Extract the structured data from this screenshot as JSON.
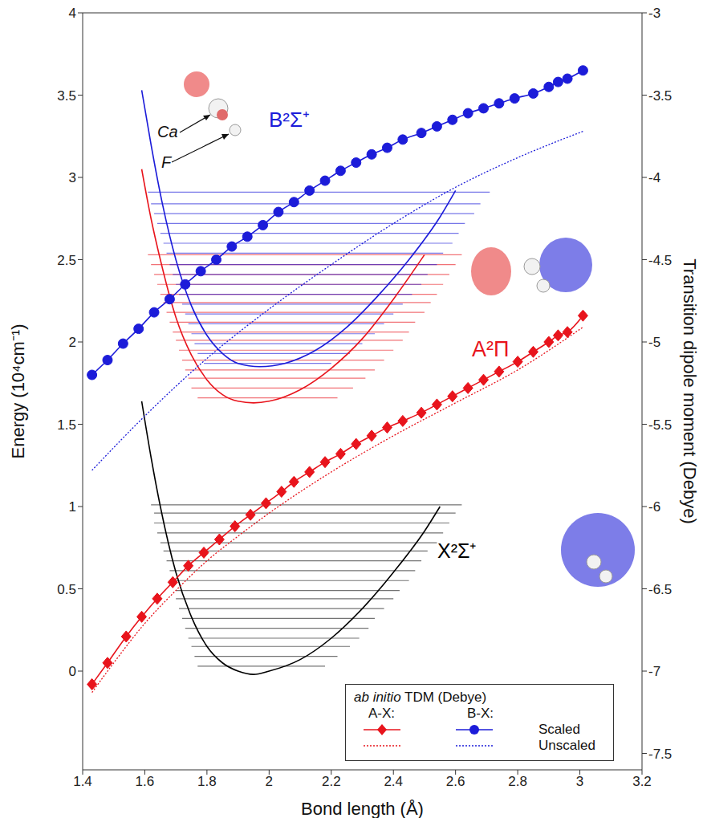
{
  "chart_data": {
    "type": "line",
    "x_label": "Bond length (Å)",
    "y_label": "Energy (10⁴cm⁻¹)",
    "y2_label": "Transition dipole moment (Debye)",
    "xlim": [
      1.4,
      3.2
    ],
    "xticks": [
      1.4,
      1.6,
      1.8,
      2,
      2.2,
      2.4,
      2.6,
      2.8,
      3,
      3.2
    ],
    "ylim": [
      -0.6,
      4
    ],
    "yticks": [
      0,
      0.5,
      1,
      1.5,
      2,
      2.5,
      3,
      3.5,
      4
    ],
    "y2lim": [
      -7.6,
      -3
    ],
    "y2ticks": [
      -7.5,
      -7,
      -6.5,
      -6,
      -5.5,
      -5,
      -4.5,
      -4,
      -3.5,
      -3
    ],
    "legend": "lower right",
    "legend_title": [
      "ab initio",
      "TDM (Debye)"
    ],
    "annotations": [
      "Ca",
      "F"
    ],
    "series": [
      {
        "name": "X²Σ⁺",
        "color": "#000000",
        "marker": "none",
        "line_style": "solid",
        "x": [
          1.59,
          1.62,
          1.65,
          1.7,
          1.75,
          1.8,
          1.85,
          1.9,
          1.95,
          2.0,
          2.1,
          2.2,
          2.3,
          2.4,
          2.5,
          2.55
        ],
        "values": [
          1.64,
          1.3,
          1.0,
          0.6,
          0.33,
          0.15,
          0.05,
          0.0,
          -0.02,
          0.0,
          0.07,
          0.2,
          0.38,
          0.6,
          0.85,
          1.0
        ],
        "vibrational_levels": {
          "energies": [
            0.03,
            0.09,
            0.15,
            0.2,
            0.26,
            0.32,
            0.38,
            0.44,
            0.49,
            0.55,
            0.61,
            0.67,
            0.73,
            0.78,
            0.84,
            0.9,
            0.96,
            1.01
          ],
          "x_start": [
            1.77,
            1.76,
            1.75,
            1.74,
            1.73,
            1.72,
            1.71,
            1.7,
            1.7,
            1.69,
            1.68,
            1.67,
            1.66,
            1.65,
            1.64,
            1.63,
            1.63,
            1.62
          ],
          "x_end": [
            2.18,
            2.22,
            2.26,
            2.29,
            2.32,
            2.34,
            2.37,
            2.4,
            2.42,
            2.45,
            2.47,
            2.49,
            2.51,
            2.54,
            2.56,
            2.58,
            2.6,
            2.62
          ]
        }
      },
      {
        "name": "A²Π",
        "color": "#e8141c",
        "marker": "none",
        "line_style": "solid",
        "x": [
          1.59,
          1.62,
          1.65,
          1.7,
          1.75,
          1.8,
          1.85,
          1.9,
          1.95,
          2.0,
          2.1,
          2.2,
          2.3,
          2.4,
          2.5
        ],
        "values": [
          3.05,
          2.75,
          2.5,
          2.15,
          1.92,
          1.77,
          1.68,
          1.64,
          1.63,
          1.64,
          1.71,
          1.84,
          2.02,
          2.26,
          2.53
        ],
        "vibrational_levels": {
          "energies": [
            1.66,
            1.72,
            1.78,
            1.83,
            1.89,
            1.95,
            2.01,
            2.06,
            2.12,
            2.18,
            2.24,
            2.29,
            2.35,
            2.41,
            2.47,
            2.53
          ],
          "x_start": [
            1.77,
            1.75,
            1.74,
            1.73,
            1.72,
            1.71,
            1.7,
            1.69,
            1.68,
            1.67,
            1.66,
            1.65,
            1.64,
            1.63,
            1.62,
            1.61
          ],
          "x_end": [
            2.22,
            2.27,
            2.31,
            2.34,
            2.37,
            2.4,
            2.43,
            2.45,
            2.47,
            2.5,
            2.52,
            2.54,
            2.56,
            2.58,
            2.6,
            2.62
          ]
        }
      },
      {
        "name": "B²Σ⁺",
        "color": "#1c1cd9",
        "marker": "none",
        "line_style": "solid",
        "x": [
          1.59,
          1.62,
          1.65,
          1.7,
          1.75,
          1.8,
          1.85,
          1.9,
          1.97,
          2.05,
          2.15,
          2.25,
          2.35,
          2.45,
          2.55,
          2.6
        ],
        "values": [
          3.53,
          3.2,
          2.9,
          2.5,
          2.22,
          2.04,
          1.93,
          1.87,
          1.85,
          1.87,
          1.95,
          2.09,
          2.28,
          2.5,
          2.76,
          2.92
        ],
        "vibrational_levels": {
          "energies": [
            1.87,
            1.93,
            1.99,
            2.05,
            2.11,
            2.17,
            2.23,
            2.29,
            2.35,
            2.41,
            2.47,
            2.54,
            2.6,
            2.66,
            2.72,
            2.78,
            2.84,
            2.91
          ],
          "x_start": [
            1.79,
            1.77,
            1.76,
            1.75,
            1.74,
            1.73,
            1.72,
            1.71,
            1.7,
            1.69,
            1.68,
            1.67,
            1.66,
            1.65,
            1.64,
            1.63,
            1.62,
            1.61
          ],
          "x_end": [
            2.2,
            2.26,
            2.3,
            2.34,
            2.37,
            2.4,
            2.43,
            2.46,
            2.49,
            2.51,
            2.54,
            2.56,
            2.59,
            2.61,
            2.63,
            2.66,
            2.68,
            2.71
          ]
        }
      },
      {
        "group": "A-X:",
        "name": "Scaled",
        "axis": "y2",
        "color": "#e8141c",
        "marker": "diamond",
        "line_style": "solid",
        "x": [
          1.43,
          1.48,
          1.54,
          1.59,
          1.64,
          1.69,
          1.74,
          1.79,
          1.84,
          1.89,
          1.94,
          1.99,
          2.04,
          2.08,
          2.13,
          2.18,
          2.23,
          2.28,
          2.33,
          2.38,
          2.43,
          2.49,
          2.54,
          2.59,
          2.64,
          2.69,
          2.74,
          2.8,
          2.85,
          2.9,
          2.93,
          2.96,
          3.01
        ],
        "values": [
          -7.08,
          -6.95,
          -6.79,
          -6.67,
          -6.56,
          -6.46,
          -6.36,
          -6.28,
          -6.2,
          -6.12,
          -6.05,
          -5.98,
          -5.91,
          -5.85,
          -5.79,
          -5.73,
          -5.68,
          -5.62,
          -5.57,
          -5.52,
          -5.48,
          -5.43,
          -5.38,
          -5.33,
          -5.28,
          -5.23,
          -5.18,
          -5.12,
          -5.06,
          -5.0,
          -4.96,
          -4.94,
          -4.84
        ]
      },
      {
        "group": "A-X:",
        "name": "Unscaled",
        "axis": "y2",
        "color": "#e8141c",
        "marker": "none",
        "line_style": "dotted",
        "x": [
          1.43,
          1.5,
          1.6,
          1.7,
          1.8,
          1.9,
          2.0,
          2.2,
          2.4,
          2.6,
          2.8,
          3.01
        ],
        "values": [
          -7.13,
          -6.95,
          -6.71,
          -6.51,
          -6.33,
          -6.18,
          -6.04,
          -5.79,
          -5.57,
          -5.37,
          -5.17,
          -4.91
        ]
      },
      {
        "group": "B-X:",
        "name": "Scaled",
        "axis": "y2",
        "color": "#1c1cd9",
        "marker": "circle",
        "line_style": "solid",
        "x": [
          1.43,
          1.48,
          1.53,
          1.58,
          1.63,
          1.68,
          1.73,
          1.78,
          1.83,
          1.88,
          1.93,
          1.98,
          2.03,
          2.08,
          2.13,
          2.18,
          2.23,
          2.28,
          2.33,
          2.38,
          2.43,
          2.49,
          2.54,
          2.59,
          2.64,
          2.69,
          2.74,
          2.79,
          2.85,
          2.9,
          2.93,
          2.96,
          3.01
        ],
        "values": [
          -5.2,
          -5.11,
          -5.01,
          -4.92,
          -4.82,
          -4.74,
          -4.65,
          -4.57,
          -4.5,
          -4.42,
          -4.36,
          -4.29,
          -4.21,
          -4.15,
          -4.08,
          -4.02,
          -3.96,
          -3.91,
          -3.86,
          -3.82,
          -3.77,
          -3.73,
          -3.69,
          -3.65,
          -3.61,
          -3.58,
          -3.55,
          -3.52,
          -3.49,
          -3.45,
          -3.42,
          -3.4,
          -3.35
        ]
      },
      {
        "group": "B-X:",
        "name": "Unscaled",
        "axis": "y2",
        "color": "#1c1cd9",
        "marker": "none",
        "line_style": "dotted",
        "x": [
          1.43,
          1.6,
          1.8,
          2.0,
          2.2,
          2.4,
          2.6,
          2.8,
          3.01
        ],
        "values": [
          -5.78,
          -5.45,
          -5.1,
          -4.8,
          -4.53,
          -4.28,
          -4.06,
          -3.88,
          -3.72
        ]
      }
    ]
  }
}
